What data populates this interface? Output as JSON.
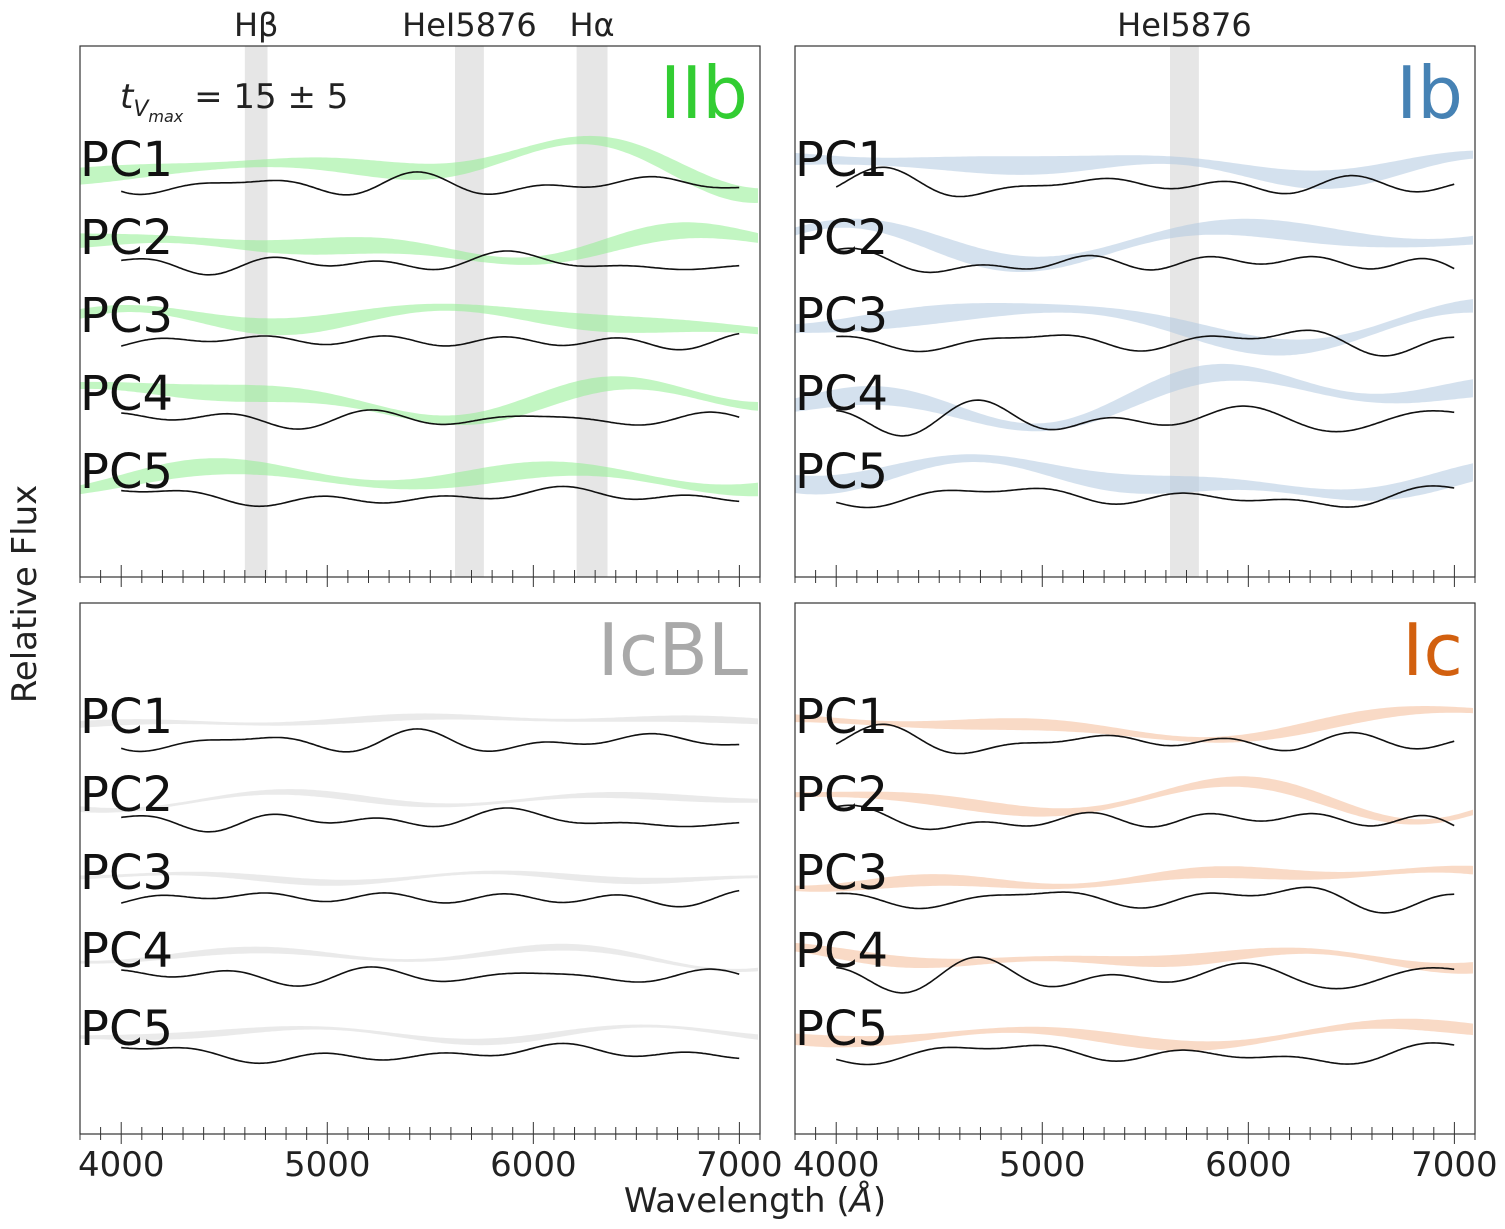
{
  "figure": {
    "ylabel": "Relative Flux",
    "xlabel": "Wavelength (Å)",
    "xlabel_main": "Wavelength (",
    "xlabel_unit": "Å",
    "xlabel_close": ")",
    "time_label_prefix": "t",
    "time_label_sub": "V",
    "time_label_subsub": "max",
    "time_label_value": " = 15 ± 5"
  },
  "chart_data": [
    {
      "type": "line",
      "panel": "IIb",
      "title": "IIb",
      "title_color": "#32cd32",
      "band_color": "#90ee90",
      "annotation": "t_Vmax = 15 ± 5",
      "xlim": [
        3800,
        7100
      ],
      "xticks": [
        4000,
        5000,
        6000,
        7000
      ],
      "xticklabels_shown": false,
      "line_markers": [
        {
          "label": "Hβ",
          "range": [
            4600,
            4710
          ]
        },
        {
          "label": "HeI5876",
          "range": [
            5620,
            5760
          ]
        },
        {
          "label": "Hα",
          "range": [
            6210,
            6360
          ]
        }
      ],
      "series": [
        {
          "name": "PC1",
          "x_range": [
            4000,
            7000
          ]
        },
        {
          "name": "PC2",
          "x_range": [
            4000,
            7000
          ]
        },
        {
          "name": "PC3",
          "x_range": [
            4000,
            7000
          ]
        },
        {
          "name": "PC4",
          "x_range": [
            4000,
            7000
          ]
        },
        {
          "name": "PC5",
          "x_range": [
            4000,
            7000
          ]
        }
      ]
    },
    {
      "type": "line",
      "panel": "Ib",
      "title": "Ib",
      "title_color": "#4682b4",
      "band_color": "#b0c8e0",
      "xlim": [
        3800,
        7100
      ],
      "xticks": [
        4000,
        5000,
        6000,
        7000
      ],
      "xticklabels_shown": false,
      "line_markers": [
        {
          "label": "HeI5876",
          "range": [
            5620,
            5760
          ]
        }
      ],
      "series": [
        {
          "name": "PC1",
          "x_range": [
            4000,
            7000
          ]
        },
        {
          "name": "PC2",
          "x_range": [
            4000,
            7000
          ]
        },
        {
          "name": "PC3",
          "x_range": [
            4000,
            7000
          ]
        },
        {
          "name": "PC4",
          "x_range": [
            4000,
            7000
          ]
        },
        {
          "name": "PC5",
          "x_range": [
            4000,
            7000
          ]
        }
      ]
    },
    {
      "type": "line",
      "panel": "IcBL",
      "title": "IcBL",
      "title_color": "#a9a9a9",
      "band_color": "#d9d9d9",
      "xlim": [
        3800,
        7100
      ],
      "xticks": [
        4000,
        5000,
        6000,
        7000
      ],
      "xticklabels": [
        "4000",
        "5000",
        "6000",
        "7000"
      ],
      "line_markers": [],
      "series": [
        {
          "name": "PC1",
          "x_range": [
            4000,
            7000
          ]
        },
        {
          "name": "PC2",
          "x_range": [
            4000,
            7000
          ]
        },
        {
          "name": "PC3",
          "x_range": [
            4000,
            7000
          ]
        },
        {
          "name": "PC4",
          "x_range": [
            4000,
            7000
          ]
        },
        {
          "name": "PC5",
          "x_range": [
            4000,
            7000
          ]
        }
      ]
    },
    {
      "type": "line",
      "panel": "Ic",
      "title": "Ic",
      "title_color": "#d2600f",
      "band_color": "#f4bb98",
      "xlim": [
        3800,
        7100
      ],
      "xticks": [
        4000,
        5000,
        6000,
        7000
      ],
      "xticklabels": [
        "4000",
        "5000",
        "6000",
        "7000"
      ],
      "line_markers": [],
      "series": [
        {
          "name": "PC1",
          "x_range": [
            4000,
            7000
          ]
        },
        {
          "name": "PC2",
          "x_range": [
            4000,
            7000
          ]
        },
        {
          "name": "PC3",
          "x_range": [
            4000,
            7000
          ]
        },
        {
          "name": "PC4",
          "x_range": [
            4000,
            7000
          ]
        },
        {
          "name": "PC5",
          "x_range": [
            4000,
            7000
          ]
        }
      ]
    }
  ]
}
